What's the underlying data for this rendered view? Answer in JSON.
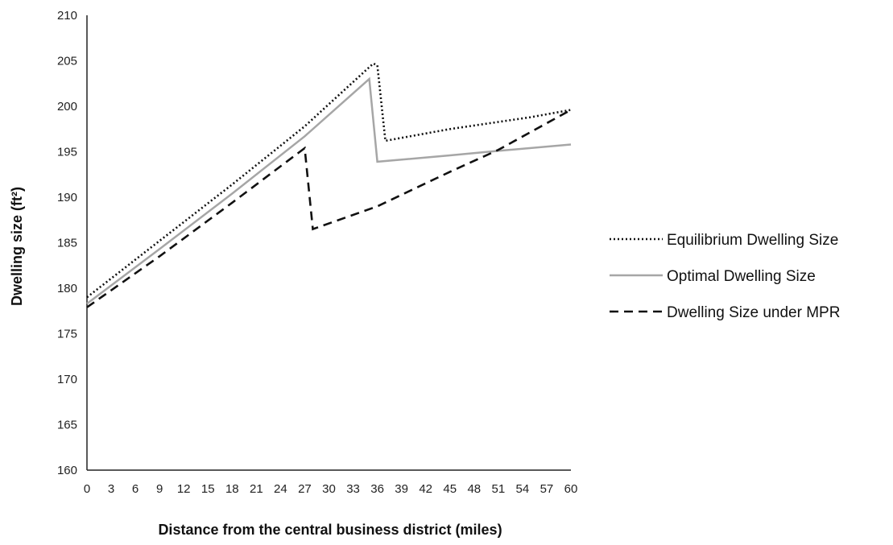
{
  "chart_data": {
    "type": "line",
    "xlabel": "Distance from the central business district (miles)",
    "ylabel": "Dwelling size (ft²)",
    "xlim": [
      0,
      60
    ],
    "ylim": [
      160,
      210
    ],
    "x_ticks": [
      "0",
      "3",
      "6",
      "9",
      "12",
      "15",
      "18",
      "21",
      "24",
      "27",
      "30",
      "33",
      "36",
      "39",
      "42",
      "45",
      "48",
      "51",
      "54",
      "57",
      "60"
    ],
    "y_ticks": [
      "160",
      "165",
      "170",
      "175",
      "180",
      "185",
      "190",
      "195",
      "200",
      "205",
      "210"
    ],
    "grid": false,
    "legend_position": "right",
    "series": [
      {
        "name": "Equilibrium Dwelling Size",
        "style": "dotted",
        "color": "#111111",
        "points": [
          [
            0,
            179
          ],
          [
            9,
            185.2
          ],
          [
            18,
            191.4
          ],
          [
            27,
            197.8
          ],
          [
            35.5,
            204.7
          ],
          [
            36,
            204.5
          ],
          [
            37,
            196.2
          ],
          [
            45,
            197.5
          ],
          [
            55,
            198.8
          ],
          [
            60,
            199.6
          ]
        ]
      },
      {
        "name": "Optimal Dwelling Size",
        "style": "solid",
        "color": "#a6a6a6",
        "points": [
          [
            0,
            178.3
          ],
          [
            9,
            184.3
          ],
          [
            18,
            190.4
          ],
          [
            27,
            196.7
          ],
          [
            35,
            203
          ],
          [
            36,
            193.9
          ],
          [
            45,
            194.6
          ],
          [
            51,
            195.1
          ],
          [
            60,
            195.8
          ]
        ]
      },
      {
        "name": "Dwelling Size under MPR",
        "style": "dashed",
        "color": "#111111",
        "points": [
          [
            0,
            177.9
          ],
          [
            9,
            183.5
          ],
          [
            18,
            189.4
          ],
          [
            27,
            195.4
          ],
          [
            28,
            186.5
          ],
          [
            36,
            189
          ],
          [
            45,
            192.8
          ],
          [
            51,
            195.2
          ],
          [
            60,
            199.6
          ]
        ]
      }
    ]
  }
}
